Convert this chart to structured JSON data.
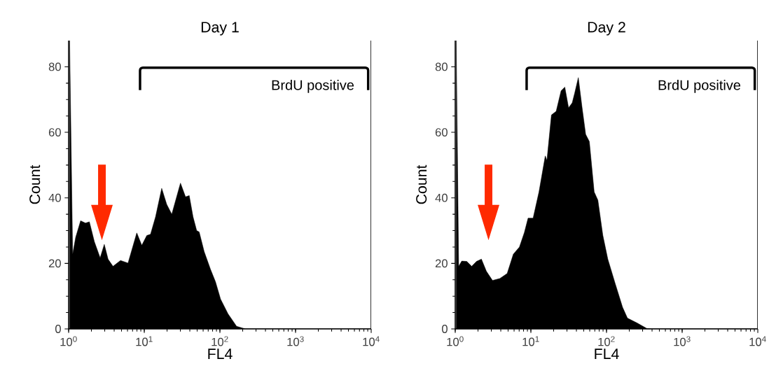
{
  "chart_data": [
    {
      "type": "area",
      "title": "Day 1",
      "xlabel": "FL4",
      "ylabel": "Count",
      "log": "x",
      "xlim": [
        1,
        10000
      ],
      "ylim": [
        0,
        88
      ],
      "xticks": [
        {
          "value": 1,
          "label": "10$^{0}$"
        },
        {
          "value": 10,
          "label": "10$^{1}$"
        },
        {
          "value": 100,
          "label": "10$^{2}$"
        },
        {
          "value": 1000,
          "label": "10$^{3}$"
        },
        {
          "value": 10000,
          "label": "10$^{4}$"
        }
      ],
      "yticks": [
        0,
        20,
        40,
        60,
        80
      ],
      "annotations": [
        "BrdU positive"
      ],
      "series": [
        {
          "color": "#000000",
          "x": [
            1.03,
            1.13,
            1.24,
            1.44,
            1.67,
            1.88,
            2.19,
            2.61,
            2.96,
            3.32,
            3.86,
            4.85,
            6.1,
            7.96,
            9.27,
            10.8,
            12.1,
            14.1,
            17.0,
            19.8,
            23.1,
            30.1,
            35.1,
            39.3,
            44.1,
            49.3,
            53.2,
            61.9,
            75.0,
            87.3,
            102,
            128,
            166,
            217,
            10000
          ],
          "values": [
            88,
            22.8,
            28,
            33,
            32.3,
            32.7,
            26.6,
            21.7,
            25.8,
            21.3,
            19.1,
            20.9,
            20.1,
            29.3,
            25.5,
            28.5,
            28.9,
            34.2,
            42.9,
            38,
            35,
            44.5,
            40.3,
            40.7,
            34.2,
            30,
            29.6,
            23.6,
            18.2,
            14.4,
            9.1,
            4.6,
            0.8,
            0,
            0
          ]
        }
      ]
    },
    {
      "type": "area",
      "title": "Day 2",
      "xlabel": "FL4",
      "ylabel": "Count",
      "log": "x",
      "xlim": [
        1,
        10000
      ],
      "ylim": [
        0,
        88
      ],
      "xticks": [
        {
          "value": 1,
          "label": "10$^{0}$"
        },
        {
          "value": 10,
          "label": "10$^{1}$"
        },
        {
          "value": 100,
          "label": "10$^{2}$"
        },
        {
          "value": 1000,
          "label": "10$^{3}$"
        },
        {
          "value": 10000,
          "label": "10$^{4}$"
        }
      ],
      "yticks": [
        0,
        20,
        40,
        60,
        80
      ],
      "annotations": [
        "BrdU positive"
      ],
      "series": [
        {
          "color": "#000000",
          "x": [
            1.03,
            1.11,
            1.22,
            1.42,
            1.65,
            1.91,
            2.22,
            2.58,
            3.11,
            3.89,
            4.86,
            5.86,
            7.06,
            8.2,
            9.18,
            10.7,
            12.8,
            15.5,
            16.3,
            18.7,
            21.6,
            25.1,
            28.1,
            31.5,
            35.2,
            37.9,
            42.4,
            47.3,
            53.0,
            59.3,
            68.7,
            76.9,
            89.3,
            104,
            130,
            163,
            189,
            254,
            343,
            398,
            10000
          ],
          "values": [
            88,
            19.1,
            20.7,
            20.6,
            19.1,
            20.6,
            21.3,
            17.6,
            14.8,
            15.4,
            16.9,
            22.8,
            25,
            29.4,
            33.8,
            33.8,
            41.8,
            52.8,
            51.4,
            65.3,
            66.4,
            72.7,
            73.8,
            67.5,
            69,
            71.9,
            76.7,
            67.9,
            59.4,
            57.2,
            41.8,
            39.3,
            28.6,
            21.3,
            13.9,
            6.6,
            3.3,
            1.8,
            0.1,
            0,
            0
          ]
        }
      ]
    }
  ]
}
